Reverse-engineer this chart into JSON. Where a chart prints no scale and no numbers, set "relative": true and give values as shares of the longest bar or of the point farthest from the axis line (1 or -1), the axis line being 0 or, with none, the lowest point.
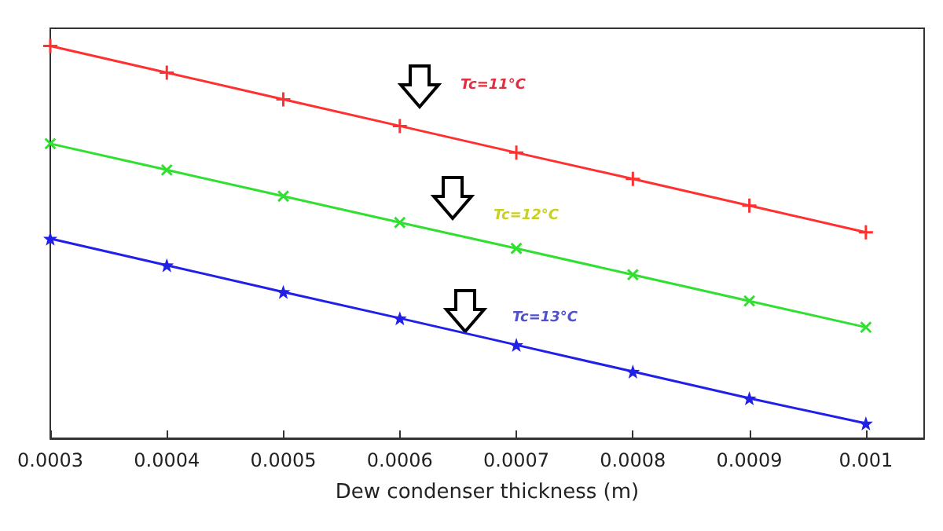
{
  "chart_data": {
    "type": "line",
    "relative": true,
    "xlabel": "Dew condenser thickness (m)",
    "x": [
      0.0003,
      0.0004,
      0.0005,
      0.0006,
      0.0007,
      0.0008,
      0.0009,
      0.001
    ],
    "xlim": [
      0.0003,
      0.00105
    ],
    "xticks": [
      {
        "value": 0.0003,
        "label": "0.0003"
      },
      {
        "value": 0.0004,
        "label": "0.0004"
      },
      {
        "value": 0.0005,
        "label": "0.0005"
      },
      {
        "value": 0.0006,
        "label": "0.0006"
      },
      {
        "value": 0.0007,
        "label": "0.0007"
      },
      {
        "value": 0.0008,
        "label": "0.0008"
      },
      {
        "value": 0.0009,
        "label": "0.0009"
      },
      {
        "value": 0.001,
        "label": "0.001"
      }
    ],
    "tick_labels": "x",
    "grid": false,
    "series": [
      {
        "color": "#ff3030",
        "marker": "cross",
        "values": [
          1,
          0.932,
          0.864,
          0.796,
          0.728,
          0.661,
          0.593,
          0.525
        ]
      },
      {
        "color": "#30e030",
        "marker": "cross",
        "values": [
          0.751,
          0.684,
          0.617,
          0.55,
          0.484,
          0.417,
          0.35,
          0.283
        ]
      },
      {
        "color": "#2020e8",
        "marker": "star",
        "values": [
          0.509,
          0.441,
          0.373,
          0.306,
          0.238,
          0.17,
          0.102,
          0.038
        ]
      }
    ],
    "annotations": [
      "Tc=11°C",
      "Tc=12°C",
      "Tc=13°C"
    ]
  }
}
